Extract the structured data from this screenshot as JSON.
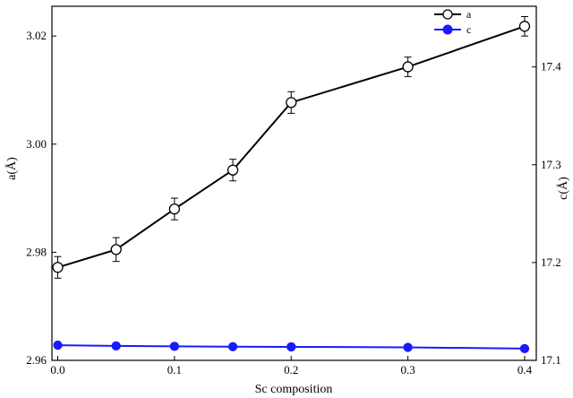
{
  "chart_data": {
    "type": "line",
    "title": "",
    "xlabel": "Sc composition",
    "ylabel": "a(Å)",
    "y2label": "c(Å)",
    "x": [
      0.0,
      0.05,
      0.1,
      0.15,
      0.2,
      0.3,
      0.4
    ],
    "xlim": [
      -0.005,
      0.41
    ],
    "ylim": [
      2.96,
      3.0255
    ],
    "y2lim": [
      17.1,
      17.462
    ],
    "xticks": [
      0.0,
      0.1,
      0.2,
      0.3,
      0.4
    ],
    "xtick_labels": [
      "0.0",
      "0.1",
      "0.2",
      "0.3",
      "0.4"
    ],
    "yticks": [
      2.96,
      2.98,
      3.0,
      3.02
    ],
    "ytick_labels": [
      "2.96",
      "2.98",
      "3.00",
      "3.02"
    ],
    "y2ticks": [
      17.1,
      17.2,
      17.3,
      17.4
    ],
    "y2tick_labels": [
      "17.1",
      "17.2",
      "17.3",
      "17.4"
    ],
    "grid": false,
    "legend_position": "top-right",
    "series": [
      {
        "name": "a",
        "axis": "left",
        "color": "#000000",
        "marker": "open-circle",
        "values": [
          2.9772,
          2.9805,
          2.988,
          2.9952,
          3.0077,
          3.0143,
          3.0218
        ],
        "errors": [
          0.002,
          0.0022,
          0.002,
          0.002,
          0.002,
          0.0018,
          0.0018
        ]
      },
      {
        "name": "c",
        "axis": "right",
        "color": "#1a1aff",
        "marker": "filled-circle",
        "values": [
          17.1155,
          17.1148,
          17.1143,
          17.114,
          17.1138,
          17.1133,
          17.112
        ],
        "errors": [
          0.0025,
          0.0025,
          0.0025,
          0.0025,
          0.0025,
          0.0025,
          0.0025
        ]
      }
    ]
  }
}
